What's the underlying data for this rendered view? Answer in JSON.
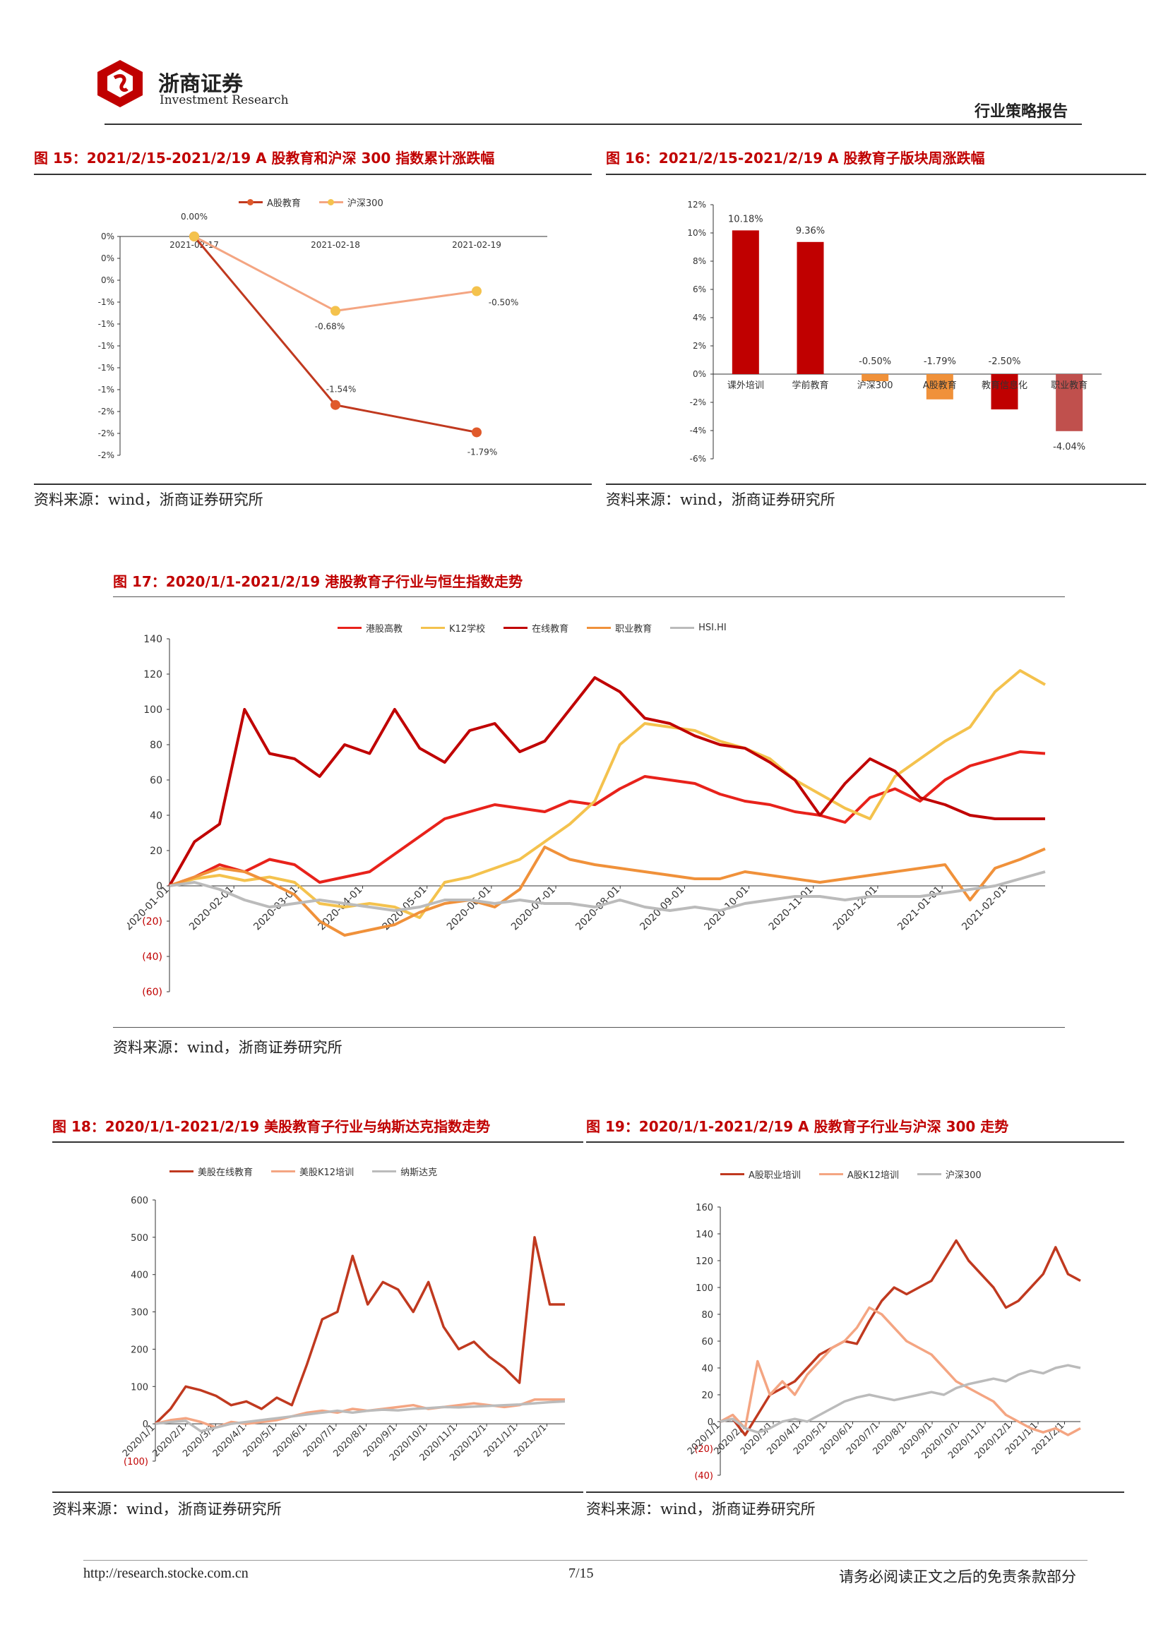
{
  "header": {
    "company_cn": "浙商证券",
    "company_en": "Investment Research",
    "report_type": "行业策略报告"
  },
  "footer": {
    "url": "http://research.stocke.com.cn",
    "page": "7/15",
    "disclaimer": "请务必阅读正文之后的免责条款部分"
  },
  "colors": {
    "title_red": "#c00000",
    "series_dark_red": "#c0392b",
    "series_orange": "#f4a582",
    "series_gold": "#f4c24d",
    "bar_red": "#c00000",
    "bar_orange": "#f0913a",
    "bar_pink": "#c0504d"
  },
  "figures": {
    "fig15": {
      "title": "图 15：2021/2/15-2021/2/19 A 股教育和沪深 300 指数累计涨跌幅",
      "source": "资料来源：wind，浙商证券研究所",
      "chart_data": {
        "type": "line",
        "categories": [
          "2021-02-17",
          "2021-02-18",
          "2021-02-19"
        ],
        "series": [
          {
            "name": "A股教育",
            "values": [
              0.0,
              -1.54,
              -1.79
            ],
            "labels": [
              "0.00%",
              "-1.54%",
              "-1.79%"
            ]
          },
          {
            "name": "沪深300",
            "values": [
              0.0,
              -0.68,
              -0.5
            ],
            "labels": [
              "",
              "-0.68%",
              "-0.50%"
            ]
          }
        ],
        "y_tick_labels": [
          "0%",
          "0%",
          "0%",
          "-1%",
          "-1%",
          "-1%",
          "-1%",
          "-1%",
          "-2%",
          "-2%",
          "-2%"
        ],
        "ylim": [
          -2.0,
          0.0
        ],
        "legend": "top-center"
      }
    },
    "fig16": {
      "title": "图 16：2021/2/15-2021/2/19 A 股教育子版块周涨跌幅",
      "source": "资料来源：wind，浙商证券研究所",
      "chart_data": {
        "type": "bar",
        "categories": [
          "课外培训",
          "学前教育",
          "沪深300",
          "A股教育",
          "教育信息化",
          "职业教育"
        ],
        "values": [
          10.18,
          9.36,
          -0.5,
          -1.79,
          -2.5,
          -4.04
        ],
        "value_labels": [
          "10.18%",
          "9.36%",
          "-0.50%",
          "-1.79%",
          "-2.50%",
          "-4.04%"
        ],
        "bar_colors": [
          "#c00000",
          "#c00000",
          "#f0913a",
          "#f0913a",
          "#c00000",
          "#c0504d"
        ],
        "y_tick_labels": [
          "12%",
          "10%",
          "8%",
          "6%",
          "4%",
          "2%",
          "0%",
          "-2%",
          "-4%",
          "-6%"
        ],
        "ylim": [
          -6,
          12
        ]
      }
    },
    "fig17": {
      "title": "图 17：2020/1/1-2021/2/19 港股教育子行业与恒生指数走势",
      "source": "资料来源：wind，浙商证券研究所",
      "chart_data": {
        "type": "line",
        "x_tick_labels": [
          "2020-01-01",
          "2020-02-01",
          "2020-03-01",
          "2020-04-01",
          "2020-05-01",
          "2020-06-01",
          "2020-07-01",
          "2020-08-01",
          "2020-09-01",
          "2020-10-01",
          "2020-11-01",
          "2020-12-01",
          "2021-01-01",
          "2021-02-01"
        ],
        "y_tick_labels": [
          "140",
          "120",
          "100",
          "80",
          "60",
          "40",
          "20",
          "0",
          "(20)",
          "(40)",
          "(60)"
        ],
        "ylim": [
          -60,
          140
        ],
        "series": [
          {
            "name": "港股高教",
            "color": "#e8221b",
            "values": [
              0,
              5,
              12,
              8,
              15,
              12,
              2,
              5,
              8,
              18,
              28,
              38,
              42,
              46,
              44,
              42,
              48,
              46,
              55,
              62,
              60,
              58,
              52,
              48,
              46,
              42,
              40,
              36,
              50,
              55,
              48,
              60,
              68,
              72,
              76,
              75
            ]
          },
          {
            "name": "K12学校",
            "color": "#f4c24d",
            "values": [
              0,
              4,
              6,
              3,
              5,
              2,
              -10,
              -12,
              -10,
              -12,
              -18,
              2,
              5,
              10,
              15,
              25,
              35,
              48,
              80,
              92,
              90,
              88,
              82,
              78,
              72,
              60,
              52,
              44,
              38,
              62,
              72,
              82,
              90,
              110,
              122,
              114
            ]
          },
          {
            "name": "在线教育",
            "color": "#c00000",
            "values": [
              0,
              25,
              35,
              100,
              75,
              72,
              62,
              80,
              75,
              100,
              78,
              70,
              88,
              92,
              76,
              82,
              100,
              118,
              110,
              95,
              92,
              85,
              80,
              78,
              70,
              60,
              40,
              58,
              72,
              65,
              50,
              46,
              40,
              38,
              38,
              38
            ]
          },
          {
            "name": "职业教育",
            "color": "#f0913a",
            "values": [
              0,
              5,
              10,
              8,
              2,
              -5,
              -20,
              -28,
              -25,
              -22,
              -15,
              -10,
              -8,
              -12,
              -2,
              22,
              15,
              12,
              10,
              8,
              6,
              4,
              4,
              8,
              6,
              4,
              2,
              4,
              6,
              8,
              10,
              12,
              -8,
              10,
              15,
              21
            ]
          },
          {
            "name": "HSI.HI",
            "color": "#bbbbbb",
            "values": [
              0,
              2,
              -2,
              -8,
              -12,
              -10,
              -8,
              -10,
              -12,
              -14,
              -12,
              -8,
              -8,
              -10,
              -8,
              -10,
              -10,
              -12,
              -8,
              -12,
              -14,
              -12,
              -14,
              -10,
              -8,
              -6,
              -6,
              -8,
              -6,
              -6,
              -6,
              -4,
              -2,
              0,
              4,
              8
            ]
          }
        ],
        "legend": "top-center"
      }
    },
    "fig18": {
      "title": "图 18：2020/1/1-2021/2/19 美股教育子行业与纳斯达克指数走势",
      "source": "资料来源：wind，浙商证券研究所",
      "chart_data": {
        "type": "line",
        "x_tick_labels": [
          "2020/1/1",
          "2020/2/1",
          "2020/3/1",
          "2020/4/1",
          "2020/5/1",
          "2020/6/1",
          "2020/7/1",
          "2020/8/1",
          "2020/9/1",
          "2020/10/1",
          "2020/11/1",
          "2020/12/1",
          "2021/1/1",
          "2021/2/1"
        ],
        "y_tick_labels": [
          "600",
          "500",
          "400",
          "300",
          "200",
          "100",
          "0",
          "(100)"
        ],
        "ylim": [
          -100,
          600
        ],
        "series": [
          {
            "name": "美股在线教育",
            "color": "#c0391f",
            "values": [
              0,
              40,
              100,
              90,
              75,
              50,
              60,
              40,
              70,
              50,
              160,
              280,
              300,
              450,
              320,
              380,
              360,
              300,
              380,
              260,
              200,
              220,
              180,
              150,
              110,
              500,
              320,
              320
            ]
          },
          {
            "name": "美股K12培训",
            "color": "#f4a582",
            "values": [
              0,
              10,
              15,
              5,
              -10,
              5,
              0,
              5,
              10,
              20,
              30,
              35,
              30,
              40,
              35,
              40,
              45,
              50,
              40,
              45,
              50,
              55,
              50,
              45,
              50,
              65,
              65,
              65
            ]
          },
          {
            "name": "纳斯达克",
            "color": "#bbbbbb",
            "values": [
              0,
              5,
              8,
              -20,
              -10,
              0,
              5,
              10,
              15,
              20,
              25,
              30,
              35,
              30,
              35,
              38,
              36,
              40,
              42,
              45,
              44,
              46,
              48,
              50,
              52,
              55,
              58,
              60
            ]
          }
        ],
        "legend": "top-left"
      }
    },
    "fig19": {
      "title": "图 19：2020/1/1-2021/2/19 A 股教育子行业与沪深 300 走势",
      "source": "资料来源：wind，浙商证券研究所",
      "chart_data": {
        "type": "line",
        "x_tick_labels": [
          "2020/1/1",
          "2020/2/1",
          "2020/3/1",
          "2020/4/1",
          "2020/5/1",
          "2020/6/1",
          "2020/7/1",
          "2020/8/1",
          "2020/9/1",
          "2020/10/1",
          "2020/11/1",
          "2020/12/1",
          "2021/1/1",
          "2021/2/1"
        ],
        "y_tick_labels": [
          "160",
          "140",
          "120",
          "100",
          "80",
          "60",
          "40",
          "20",
          "0",
          "(20)",
          "(40)"
        ],
        "ylim": [
          -40,
          160
        ],
        "series": [
          {
            "name": "A股职业培训",
            "color": "#c0391f",
            "values": [
              0,
              2,
              -10,
              5,
              20,
              25,
              30,
              40,
              50,
              55,
              60,
              58,
              75,
              90,
              100,
              95,
              100,
              105,
              120,
              135,
              120,
              110,
              100,
              85,
              90,
              100,
              110,
              130,
              110,
              105
            ]
          },
          {
            "name": "A股K12培训",
            "color": "#f4a582",
            "values": [
              0,
              5,
              -5,
              45,
              20,
              30,
              20,
              35,
              45,
              55,
              60,
              70,
              85,
              80,
              70,
              60,
              55,
              50,
              40,
              30,
              25,
              20,
              15,
              5,
              0,
              -5,
              -8,
              -5,
              -10,
              -5
            ]
          },
          {
            "name": "沪深300",
            "color": "#bbbbbb",
            "values": [
              0,
              2,
              -5,
              -8,
              -5,
              0,
              2,
              0,
              5,
              10,
              15,
              18,
              20,
              18,
              16,
              18,
              20,
              22,
              20,
              25,
              28,
              30,
              32,
              30,
              35,
              38,
              36,
              40,
              42,
              40
            ]
          }
        ],
        "legend": "top-left"
      }
    }
  }
}
